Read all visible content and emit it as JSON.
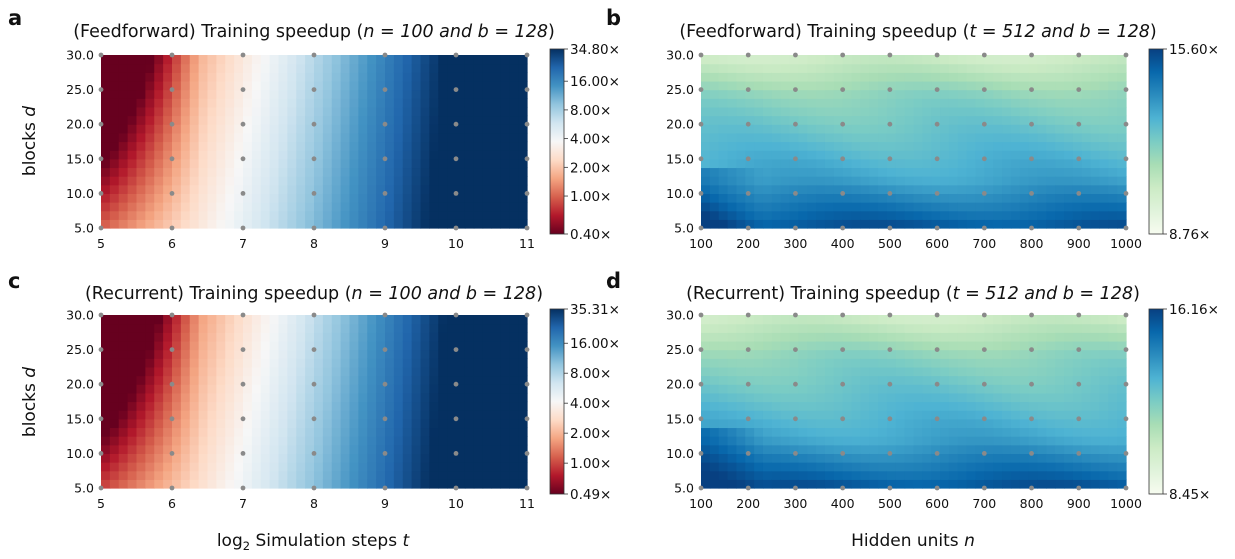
{
  "colors": {
    "point": "#8a8a8a",
    "rdbu": [
      "#67001f",
      "#b2182b",
      "#d6604d",
      "#f4a582",
      "#fddbc7",
      "#f7f7f7",
      "#d1e5f0",
      "#92c5de",
      "#4393c3",
      "#2166ac",
      "#053061"
    ],
    "gnbu": [
      "#f7fcf0",
      "#e0f3db",
      "#ccebc5",
      "#a8ddb5",
      "#7bccc4",
      "#4eb3d3",
      "#2b8cbe",
      "#0868ac",
      "#084081"
    ]
  },
  "chart_data": [
    {
      "letter": "a",
      "type": "heatmap",
      "title_prefix": "(Feedforward) Training speedup (",
      "title_math": "n = 100 and b = 128",
      "title_suffix": ")",
      "xlabel": "",
      "ylabel_text": "blocks",
      "ylabel_var": "d",
      "x": [
        5,
        6,
        7,
        8,
        9,
        10,
        11
      ],
      "x_tick_labels": [
        "5",
        "6",
        "7",
        "8",
        "9",
        "10",
        "11"
      ],
      "y": [
        5,
        10,
        15,
        20,
        25,
        30
      ],
      "y_tick_labels": [
        "5.0",
        "10.0",
        "15.0",
        "20.0",
        "25.0",
        "30.0"
      ],
      "xlim": [
        5,
        11
      ],
      "ylim": [
        5,
        30
      ],
      "colorscale": "RdBu",
      "log_scale": true,
      "vmin": 0.4,
      "vmax": 34.8,
      "colorbar_ticks": [
        0.4,
        1.0,
        2.0,
        4.0,
        8.0,
        16.0,
        34.8
      ],
      "colorbar_labels": [
        "0.40×",
        "1.00×",
        "2.00×",
        "4.00×",
        "8.00×",
        "16.00×",
        "34.80×"
      ]
    },
    {
      "letter": "b",
      "type": "heatmap",
      "title_prefix": "(Feedforward) Training speedup (",
      "title_math": "t = 512 and b = 128",
      "title_suffix": ")",
      "xlabel": "",
      "ylabel_text": "",
      "ylabel_var": "",
      "x": [
        100,
        200,
        300,
        400,
        500,
        600,
        700,
        800,
        900,
        1000
      ],
      "x_tick_labels": [
        "100",
        "200",
        "300",
        "400",
        "500",
        "600",
        "700",
        "800",
        "900",
        "1000"
      ],
      "y": [
        5,
        10,
        15,
        20,
        25,
        30
      ],
      "y_tick_labels": [
        "5.0",
        "10.0",
        "15.0",
        "20.0",
        "25.0",
        "30.0"
      ],
      "xlim": [
        100,
        1000
      ],
      "ylim": [
        5,
        30
      ],
      "colorscale": "GnBu",
      "log_scale": false,
      "vmin": 8.76,
      "vmax": 15.6,
      "colorbar_ticks": [
        8.76,
        15.6
      ],
      "colorbar_labels": [
        "8.76×",
        "15.60×"
      ]
    },
    {
      "letter": "c",
      "type": "heatmap",
      "title_prefix": "(Recurrent) Training speedup (",
      "title_math": "n = 100 and b = 128",
      "title_suffix": ")",
      "xlabel_text": "Simulation steps",
      "xlabel_prefix": "log",
      "xlabel_sub": "2",
      "xlabel_var": "t",
      "ylabel_text": "blocks",
      "ylabel_var": "d",
      "x": [
        5,
        6,
        7,
        8,
        9,
        10,
        11
      ],
      "x_tick_labels": [
        "5",
        "6",
        "7",
        "8",
        "9",
        "10",
        "11"
      ],
      "y": [
        5,
        10,
        15,
        20,
        25,
        30
      ],
      "y_tick_labels": [
        "5.0",
        "10.0",
        "15.0",
        "20.0",
        "25.0",
        "30.0"
      ],
      "xlim": [
        5,
        11
      ],
      "ylim": [
        5,
        30
      ],
      "colorscale": "RdBu",
      "log_scale": true,
      "vmin": 0.49,
      "vmax": 35.31,
      "colorbar_ticks": [
        0.49,
        1.0,
        2.0,
        4.0,
        8.0,
        16.0,
        35.31
      ],
      "colorbar_labels": [
        "0.49×",
        "1.00×",
        "2.00×",
        "4.00×",
        "8.00×",
        "16.00×",
        "35.31×"
      ]
    },
    {
      "letter": "d",
      "type": "heatmap",
      "title_prefix": "(Recurrent) Training speedup (",
      "title_math": "t = 512 and b = 128",
      "title_suffix": ")",
      "xlabel_text": "Hidden units",
      "xlabel_prefix": "",
      "xlabel_sub": "",
      "xlabel_var": "n",
      "ylabel_text": "",
      "ylabel_var": "",
      "x": [
        100,
        200,
        300,
        400,
        500,
        600,
        700,
        800,
        900,
        1000
      ],
      "x_tick_labels": [
        "100",
        "200",
        "300",
        "400",
        "500",
        "600",
        "700",
        "800",
        "900",
        "1000"
      ],
      "y": [
        5,
        10,
        15,
        20,
        25,
        30
      ],
      "y_tick_labels": [
        "5.0",
        "10.0",
        "15.0",
        "20.0",
        "25.0",
        "30.0"
      ],
      "xlim": [
        100,
        1000
      ],
      "ylim": [
        5,
        30
      ],
      "colorscale": "GnBu",
      "log_scale": false,
      "vmin": 8.45,
      "vmax": 16.16,
      "colorbar_ticks": [
        8.45,
        16.16
      ],
      "colorbar_labels": [
        "8.45×",
        "16.16×"
      ]
    }
  ]
}
